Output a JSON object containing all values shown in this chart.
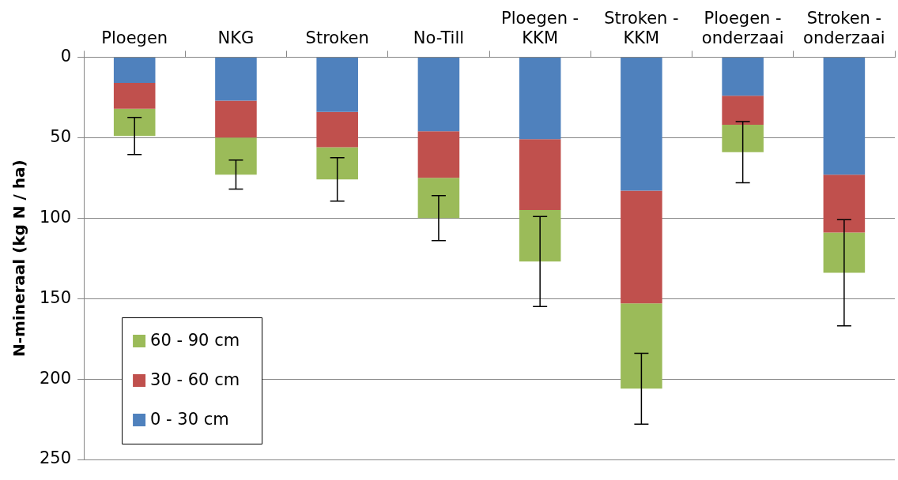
{
  "chart_data": {
    "type": "bar",
    "stacked": true,
    "ylabel": "N-mineraal (kg N / ha)",
    "categories": [
      "Ploegen",
      "NKG",
      "Stroken",
      "No-Till",
      "Ploegen - KKM",
      "Stroken - KKM",
      "Ploegen - onderzaai",
      "Stroken - onderzaai"
    ],
    "series": [
      {
        "name": "0 - 30 cm",
        "color": "#4f81bd",
        "values": [
          16,
          27,
          34,
          46,
          51,
          83,
          24,
          73
        ]
      },
      {
        "name": "30 - 60 cm",
        "color": "#c0504d",
        "values": [
          16,
          23,
          22,
          29,
          44,
          70,
          18,
          36
        ]
      },
      {
        "name": "60 - 90 cm",
        "color": "#9bbb59",
        "values": [
          17,
          23,
          20,
          25,
          32,
          53,
          17,
          25
        ],
        "errors": [
          11.5,
          9,
          13.5,
          14,
          28,
          22,
          19,
          33
        ]
      }
    ],
    "ylim": [
      250,
      0
    ],
    "yticks": [
      0,
      50,
      100,
      150,
      200,
      250
    ],
    "grid": "y",
    "legend": "bottom left"
  }
}
